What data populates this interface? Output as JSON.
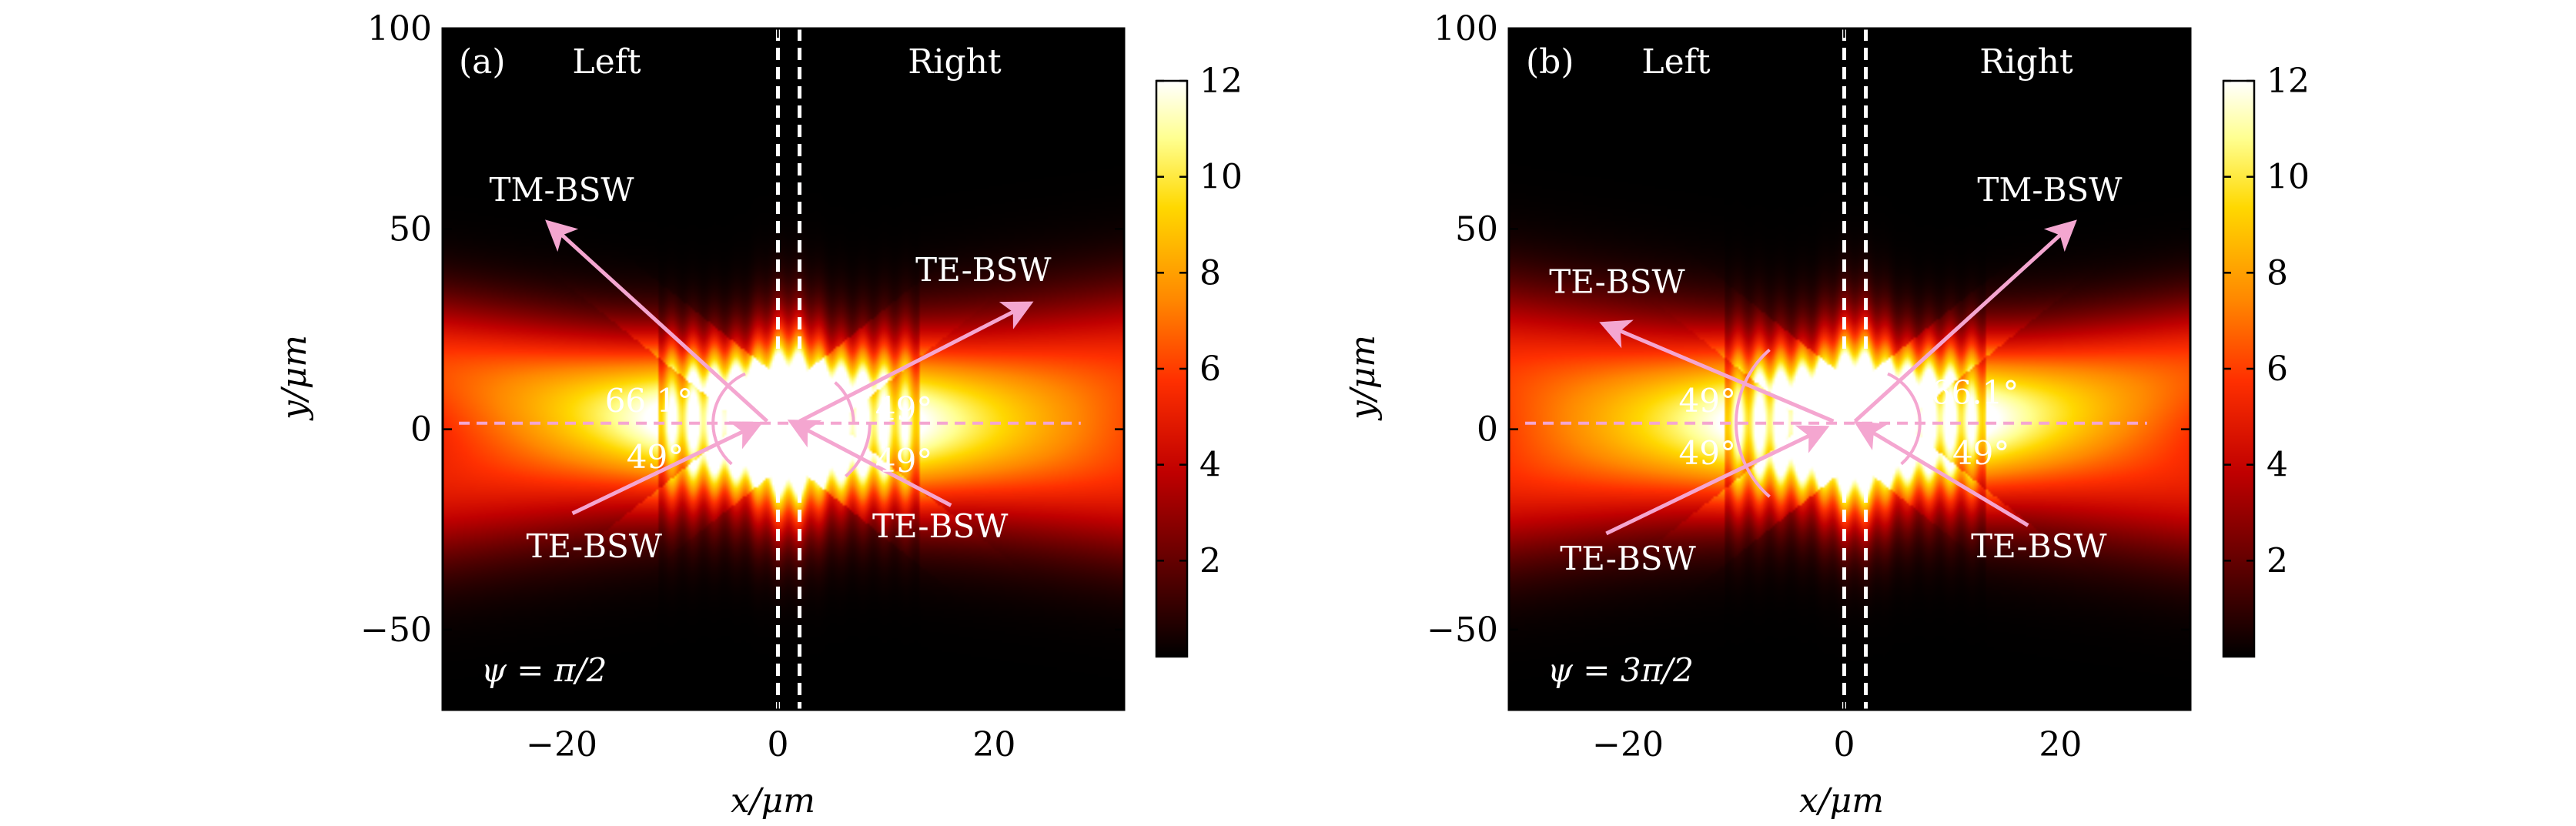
{
  "colors": {
    "overlay_pink": "#f4a6d0",
    "label_white": "#ffffff",
    "colormap": [
      "#000000",
      "#5a0000",
      "#c00000",
      "#ff3000",
      "#ff8800",
      "#ffd800",
      "#ffff90",
      "#ffffff"
    ]
  },
  "chart_data": [
    {
      "type": "heatmap",
      "panel_label": "(a)",
      "region_left": "Left",
      "region_right": "Right",
      "psi_label": "ψ = π/2",
      "xlabel": "x/μm",
      "ylabel": "y/μm",
      "xlim": [
        -31,
        32
      ],
      "ylim": [
        -70,
        100
      ],
      "x_ticks": [
        -20,
        0,
        20
      ],
      "y_ticks": [
        -50,
        0,
        50,
        100
      ],
      "x_tick_labels": [
        "−20",
        "0",
        "20"
      ],
      "y_tick_labels": [
        "−50",
        "0",
        "50",
        "100"
      ],
      "colorbar": {
        "min": 0,
        "max": 12,
        "ticks": [
          2,
          4,
          6,
          8,
          10,
          12
        ]
      },
      "divider_lines_x": [
        0,
        2
      ],
      "baseline_y": 1.5,
      "intensity_beams": [
        {
          "angle_deg": 155,
          "width": 11,
          "amp": 7
        },
        {
          "angle_deg": 25,
          "width": 13,
          "amp": 6.5
        },
        {
          "angle_deg": 205,
          "width": 13,
          "amp": 6
        },
        {
          "angle_deg": 335,
          "width": 13,
          "amp": 6
        }
      ],
      "arrows": [
        {
          "label": "TM-BSW",
          "from": [
            -1,
            2
          ],
          "to": [
            -21,
            51
          ],
          "label_at": [
            -20,
            57
          ],
          "label_anchor": "middle"
        },
        {
          "label": "TE-BSW",
          "from": [
            2,
            2
          ],
          "to": [
            23,
            31
          ],
          "label_at": [
            19,
            37
          ],
          "label_anchor": "middle"
        },
        {
          "label": "TE-BSW",
          "from": [
            -19,
            -21
          ],
          "to": [
            -2,
            1
          ],
          "label_at": [
            -17,
            -32
          ],
          "label_anchor": "middle"
        },
        {
          "label": "TE-BSW",
          "from": [
            16,
            -19
          ],
          "to": [
            1.5,
            1.5
          ],
          "label_at": [
            15,
            -27
          ],
          "label_anchor": "middle"
        }
      ],
      "angle_labels": [
        {
          "text": "66.1°",
          "at": [
            -16,
            7
          ],
          "anchor": "start"
        },
        {
          "text": "49°",
          "at": [
            -14,
            -7
          ],
          "anchor": "start"
        },
        {
          "text": "49°",
          "at": [
            9,
            5
          ],
          "anchor": "start"
        },
        {
          "text": "49°",
          "at": [
            9,
            -8
          ],
          "anchor": "start"
        }
      ],
      "angle_arcs": [
        {
          "center": [
            -1,
            1.5
          ],
          "r": 5,
          "start": 113.9,
          "end": 180
        },
        {
          "center": [
            -1,
            1.5
          ],
          "r": 5,
          "start": 180,
          "end": 229
        },
        {
          "center": [
            2,
            1.5
          ],
          "r": 5,
          "start": 49,
          "end": 0
        },
        {
          "center": [
            2,
            1.5
          ],
          "r": 6.5,
          "start": -49,
          "end": 0
        }
      ]
    },
    {
      "type": "heatmap",
      "panel_label": "(b)",
      "region_left": "Left",
      "region_right": "Right",
      "psi_label": "ψ = 3π/2",
      "xlabel": "x/μm",
      "ylabel": "y/μm",
      "xlim": [
        -31,
        32
      ],
      "ylim": [
        -70,
        100
      ],
      "x_ticks": [
        -20,
        0,
        20
      ],
      "y_ticks": [
        -50,
        0,
        50,
        100
      ],
      "x_tick_labels": [
        "−20",
        "0",
        "20"
      ],
      "y_tick_labels": [
        "−50",
        "0",
        "50",
        "100"
      ],
      "colorbar": {
        "min": 0,
        "max": 12,
        "ticks": [
          2,
          4,
          6,
          8,
          10,
          12
        ]
      },
      "divider_lines_x": [
        0,
        2
      ],
      "baseline_y": 1.5,
      "intensity_beams": [
        {
          "angle_deg": 25,
          "width": 11,
          "amp": 7
        },
        {
          "angle_deg": 155,
          "width": 13,
          "amp": 6.5
        },
        {
          "angle_deg": 205,
          "width": 13,
          "amp": 6
        },
        {
          "angle_deg": 335,
          "width": 13,
          "amp": 6
        }
      ],
      "arrows": [
        {
          "label": "TM-BSW",
          "from": [
            1,
            2
          ],
          "to": [
            21,
            51
          ],
          "label_at": [
            19,
            57
          ],
          "label_anchor": "middle"
        },
        {
          "label": "TE-BSW",
          "from": [
            -1,
            2
          ],
          "to": [
            -22,
            26
          ],
          "label_at": [
            -21,
            34
          ],
          "label_anchor": "middle"
        },
        {
          "label": "TE-BSW",
          "from": [
            -22,
            -26
          ],
          "to": [
            -2,
            0
          ],
          "label_at": [
            -20,
            -35
          ],
          "label_anchor": "middle"
        },
        {
          "label": "TE-BSW",
          "from": [
            17,
            -24
          ],
          "to": [
            1.5,
            1
          ],
          "label_at": [
            18,
            -32
          ],
          "label_anchor": "middle"
        }
      ],
      "angle_labels": [
        {
          "text": "49°",
          "at": [
            -10,
            7
          ],
          "anchor": "end"
        },
        {
          "text": "49°",
          "at": [
            -10,
            -6
          ],
          "anchor": "end"
        },
        {
          "text": "66.1°",
          "at": [
            8,
            9
          ],
          "anchor": "start"
        },
        {
          "text": "49°",
          "at": [
            10,
            -6
          ],
          "anchor": "start"
        }
      ],
      "angle_arcs": [
        {
          "center": [
            -1,
            1.5
          ],
          "r": 9,
          "start": 131,
          "end": 180
        },
        {
          "center": [
            -1,
            1.5
          ],
          "r": 9,
          "start": 180,
          "end": 229
        },
        {
          "center": [
            2,
            1.5
          ],
          "r": 5,
          "start": 66.1,
          "end": 0
        },
        {
          "center": [
            2,
            1.5
          ],
          "r": 5,
          "start": -49,
          "end": 0
        }
      ]
    }
  ]
}
